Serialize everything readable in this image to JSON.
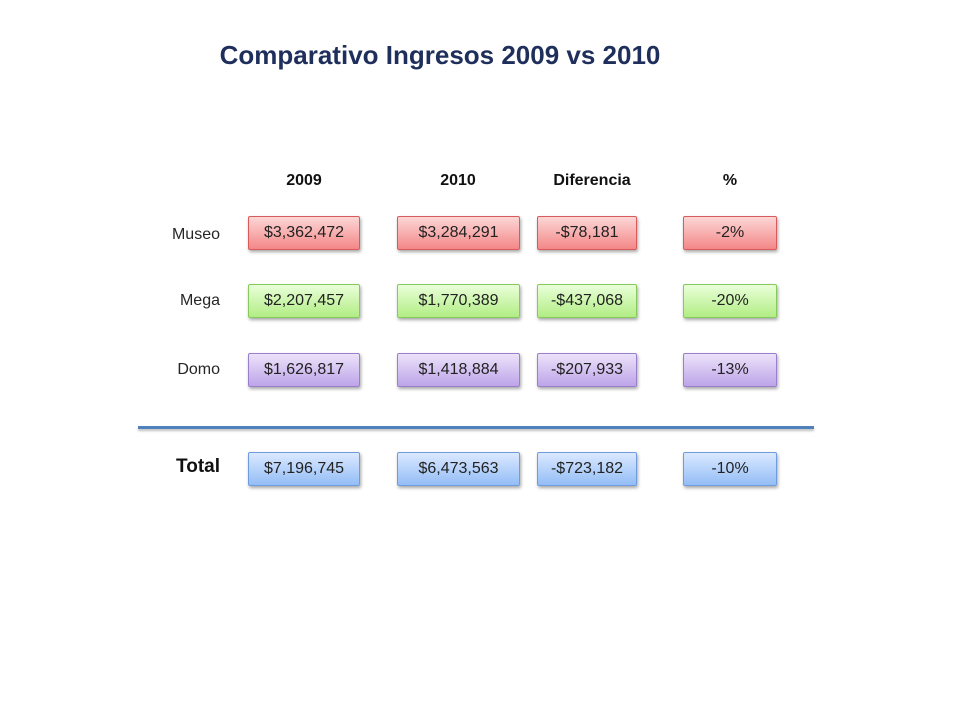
{
  "title": "Comparativo Ingresos 2009 vs 2010",
  "headers": [
    "2009",
    "2010",
    "Diferencia",
    "%"
  ],
  "rows": [
    {
      "label": "Museo",
      "v2009": "$3,362,472",
      "v2010": "$3,284,291",
      "diff": "-$78,181",
      "pct": "-2%"
    },
    {
      "label": "Mega",
      "v2009": "$2,207,457",
      "v2010": "$1,770,389",
      "diff": "-$437,068",
      "pct": "-20%"
    },
    {
      "label": "Domo",
      "v2009": "$1,626,817",
      "v2010": "$1,418,884",
      "diff": "-$207,933",
      "pct": "-13%"
    }
  ],
  "total": {
    "label": "Total",
    "v2009": "$7,196,745",
    "v2010": "$6,473,563",
    "diff": "-$723,182",
    "pct": "-10%"
  },
  "colors": {
    "museo": "#f48787",
    "mega": "#b2ed84",
    "domo": "#bda4e8",
    "total": "#93bdf6",
    "title": "#1f2f5c",
    "divider": "#4f81bd"
  }
}
